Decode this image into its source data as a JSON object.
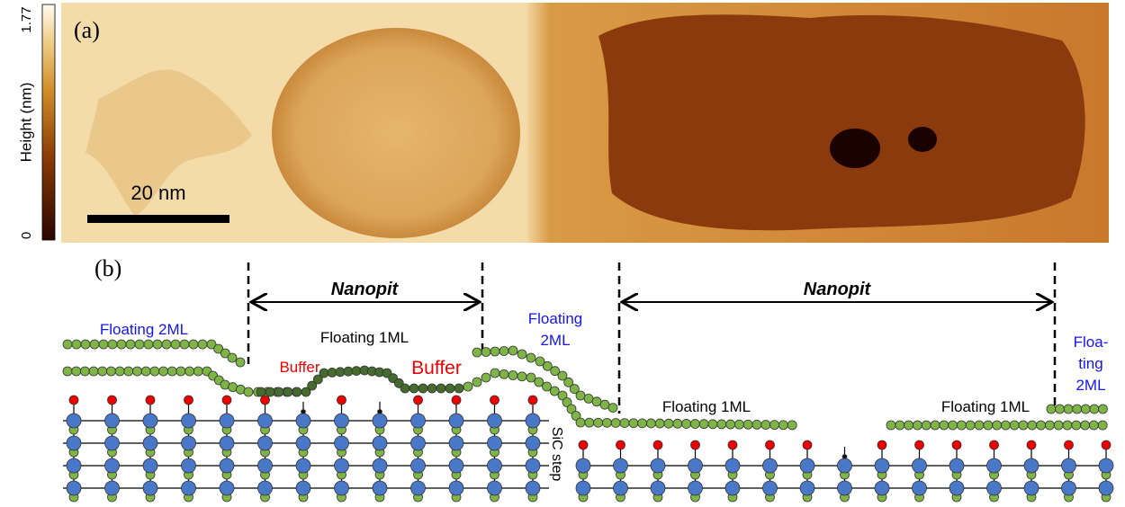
{
  "colorbar": {
    "label": "Height (nm)",
    "max": "1.77",
    "min": "0"
  },
  "panel_a": {
    "label": "(a)",
    "scale_bar": "20 nm"
  },
  "panel_b": {
    "label": "(b)",
    "nanopit_left": "Nanopit",
    "nanopit_right": "Nanopit",
    "floating_2ml_left": "Floating 2ML",
    "floating_1ml_top": "Floating 1ML",
    "buffer_left": "Buffer",
    "buffer_right": "Buffer",
    "floating_2ml_mid": [
      "Floating",
      "2ML"
    ],
    "floating_1ml_a": "Floating 1ML",
    "floating_1ml_b": "Floating 1ML",
    "floating_2ml_right": [
      "Floa-",
      "ting",
      "2ML"
    ],
    "sic_step": "SiC step"
  }
}
